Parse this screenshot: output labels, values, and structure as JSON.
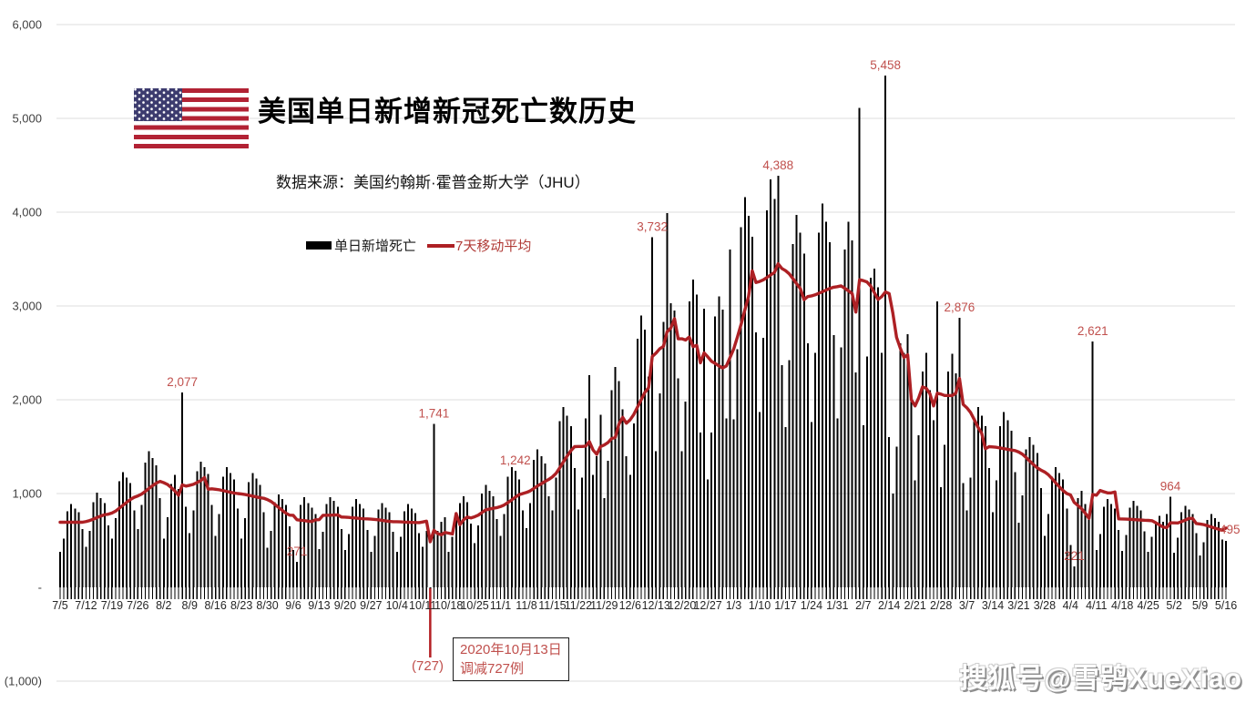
{
  "page": {
    "watermark": "搜狐号@雪鸮XueXiao"
  },
  "header": {
    "title": "美国单日新增新冠死亡数历史",
    "subtitle": "数据来源：美国约翰斯·霍普金斯大学（JHU）"
  },
  "legend": {
    "bars_label": "单日新增死亡",
    "ma_label": "7天移动平均"
  },
  "colors": {
    "bar": "#000000",
    "ma_line": "#ad2024",
    "annotation": "#c0504d",
    "event_line": "#b41f23",
    "grid": "#dcdcdc",
    "axis_text": "#404040",
    "x_text": "#262626",
    "flag_red": "#B22234",
    "flag_blue": "#3C3B6E"
  },
  "chart_data": {
    "type": "bar",
    "title": "美国单日新增新冠死亡数历史",
    "xlabel": "",
    "ylabel": "",
    "ylim": [
      -1000,
      6000
    ],
    "grid": "horizontal-light",
    "legend_position": "top-left-inside",
    "days_per_tick": 7,
    "x_tick_labels": [
      "7/5",
      "7/12",
      "7/19",
      "7/26",
      "8/2",
      "8/9",
      "8/16",
      "8/23",
      "8/30",
      "9/6",
      "9/13",
      "9/20",
      "9/27",
      "10/4",
      "10/11",
      "10/18",
      "10/25",
      "11/1",
      "11/8",
      "11/15",
      "11/22",
      "11/29",
      "12/6",
      "12/13",
      "12/20",
      "12/27",
      "1/3",
      "1/10",
      "1/17",
      "1/24",
      "1/31",
      "2/7",
      "2/14",
      "2/21",
      "2/28",
      "3/7",
      "3/14",
      "3/21",
      "3/28",
      "4/4",
      "4/11",
      "4/18",
      "4/25",
      "5/2",
      "5/9",
      "5/16"
    ],
    "y_ticks": [
      {
        "label": "6,000",
        "value": 6000
      },
      {
        "label": "5,000",
        "value": 5000
      },
      {
        "label": "4,000",
        "value": 4000
      },
      {
        "label": "3,000",
        "value": 3000
      },
      {
        "label": "2,000",
        "value": 2000
      },
      {
        "label": "1,000",
        "value": 1000
      },
      {
        "label": "-",
        "value": 0
      },
      {
        "label": "(1,000)",
        "value": -1000
      }
    ],
    "series": [
      {
        "name": "单日新增死亡",
        "type": "bar",
        "values": [
          380,
          520,
          810,
          890,
          840,
          800,
          620,
          430,
          600,
          910,
          1010,
          950,
          900,
          660,
          520,
          740,
          1130,
          1230,
          1170,
          1110,
          820,
          620,
          880,
          1330,
          1450,
          1380,
          1300,
          950,
          520,
          750,
          1100,
          1200,
          1050,
          2077,
          860,
          580,
          820,
          1240,
          1340,
          1280,
          1210,
          880,
          550,
          780,
          1180,
          1280,
          1220,
          1150,
          840,
          520,
          740,
          1120,
          1220,
          1160,
          1090,
          800,
          420,
          600,
          910,
          990,
          940,
          880,
          650,
          400,
          271,
          880,
          960,
          900,
          850,
          780,
          410,
          590,
          890,
          960,
          920,
          860,
          620,
          400,
          570,
          860,
          940,
          890,
          840,
          610,
          380,
          550,
          830,
          900,
          850,
          800,
          590,
          380,
          540,
          810,
          890,
          840,
          790,
          580,
          430,
          600,
          -727,
          1741,
          600,
          700,
          750,
          380,
          540,
          800,
          900,
          970,
          910,
          680,
          470,
          660,
          1000,
          1090,
          1030,
          970,
          730,
          550,
          780,
          1180,
          1280,
          1242,
          1150,
          820,
          630,
          900,
          1360,
          1470,
          1400,
          1320,
          970,
          820,
          1170,
          1770,
          1920,
          1830,
          1720,
          1270,
          830,
          1170,
          1800,
          2260,
          1200,
          1400,
          1840,
          950,
          1350,
          2100,
          2350,
          2200,
          1900,
          1400,
          1200,
          1750,
          2650,
          2900,
          2750,
          2250,
          3732,
          1450,
          2070,
          2830,
          3990,
          3030,
          2950,
          2230,
          1450,
          1980,
          3050,
          3280,
          3120,
          1650,
          2970,
          1150,
          1650,
          2890,
          3100,
          2960,
          1800,
          3600,
          1790,
          2540,
          3840,
          4160,
          3960,
          3740,
          2720,
          1870,
          2660,
          4020,
          4350,
          4140,
          4388,
          2370,
          1710,
          2420,
          3660,
          3970,
          3780,
          3560,
          2600,
          1760,
          2500,
          3780,
          4090,
          3900,
          3680,
          2690,
          1800,
          2560,
          3600,
          3900,
          3700,
          2290,
          5110,
          1730,
          2460,
          3300,
          3400,
          3200,
          2502,
          5458,
          1600,
          1000,
          1500,
          2600,
          2500,
          2700,
          2100,
          1140,
          1620,
          2300,
          2500,
          2100,
          1780,
          3050,
          1070,
          1520,
          2300,
          2490,
          2280,
          2876,
          1114,
          820,
          1170,
          1770,
          1920,
          1830,
          1720,
          1270,
          800,
          1140,
          1720,
          1870,
          1780,
          1670,
          1230,
          690,
          980,
          1470,
          1600,
          1520,
          1430,
          1060,
          550,
          780,
          1180,
          1280,
          1220,
          1150,
          840,
          450,
          221,
          950,
          1030,
          890,
          768,
          2621,
          400,
          570,
          860,
          940,
          890,
          840,
          610,
          390,
          560,
          850,
          920,
          870,
          820,
          595,
          380,
          540,
          700,
          760,
          700,
          780,
          964,
          370,
          530,
          800,
          870,
          830,
          780,
          580,
          340,
          480,
          720,
          780,
          740,
          700,
          510,
          495
        ]
      },
      {
        "name": "7天移动平均",
        "type": "line",
        "derived": "trailing 7-day moving average of 单日新增死亡"
      }
    ],
    "annotations": [
      {
        "label": "2,077",
        "day": 33,
        "value": 2077
      },
      {
        "label": "271",
        "day": 64,
        "value": 271
      },
      {
        "label": "1,741",
        "day": 101,
        "value": 1741
      },
      {
        "label": "1,242",
        "day": 123,
        "value": 1242
      },
      {
        "label": "3,732",
        "day": 160,
        "value": 3732
      },
      {
        "label": "4,388",
        "day": 194,
        "value": 4388
      },
      {
        "label": "5,458",
        "day": 223,
        "value": 5458
      },
      {
        "label": "2,876",
        "day": 243,
        "value": 2876
      },
      {
        "label": "2,621",
        "day": 279,
        "value": 2621
      },
      {
        "label": "221",
        "day": 274,
        "value": 221
      },
      {
        "label": "964",
        "day": 300,
        "value": 964
      },
      {
        "label": "495",
        "day": 315,
        "value": 495,
        "placement": "right",
        "label_at_value": 620
      }
    ],
    "event": {
      "day": 100,
      "value": -727,
      "value_label": "(727)",
      "note_line1": "2020年10月13日",
      "note_line2": "调减727例"
    }
  }
}
